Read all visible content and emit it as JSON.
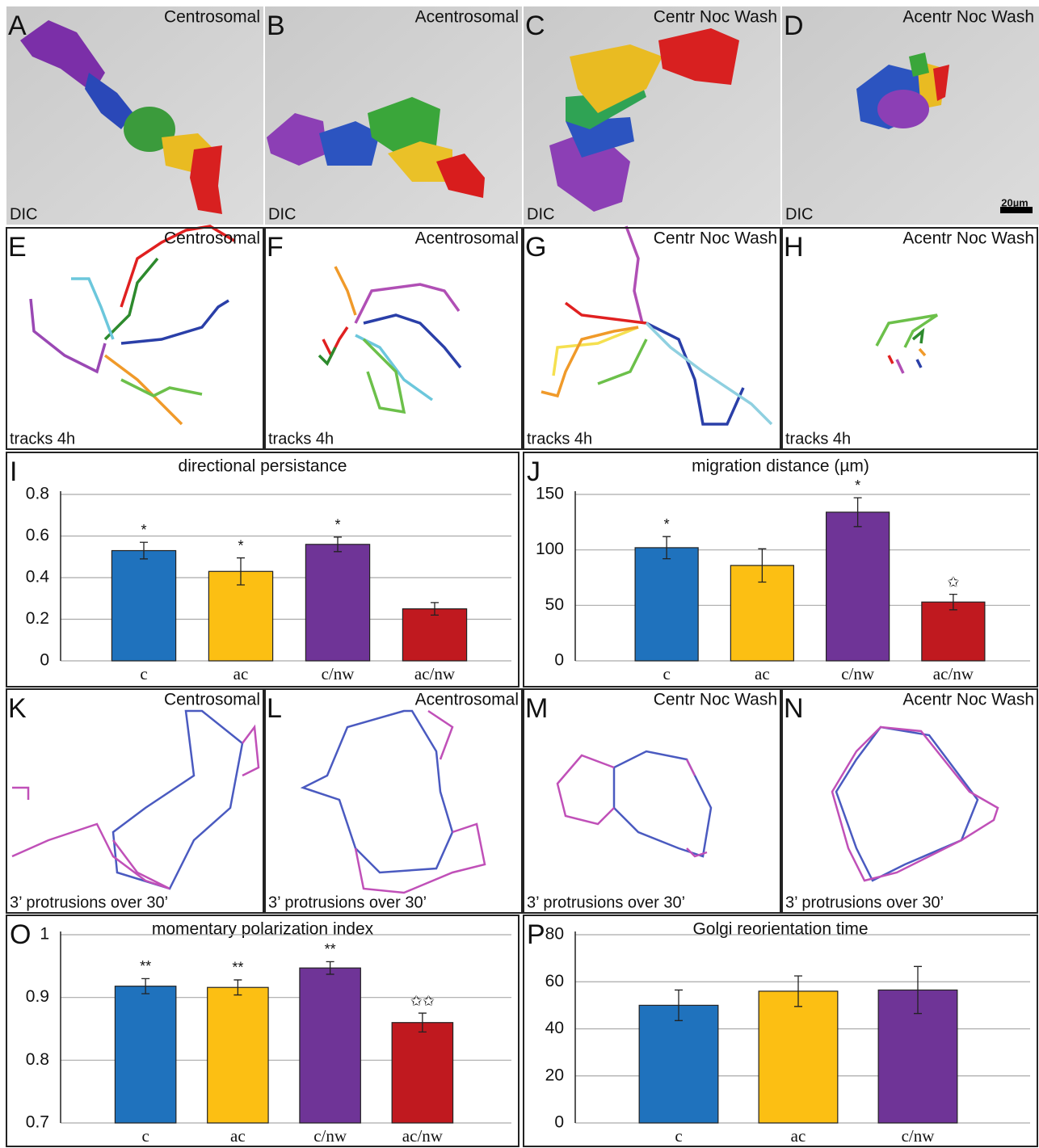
{
  "image_panels": [
    {
      "letter": "A",
      "title": "Centrosomal",
      "caption": "DIC"
    },
    {
      "letter": "B",
      "title": "Acentrosomal",
      "caption": "DIC"
    },
    {
      "letter": "C",
      "title": "Centr Noc Wash",
      "caption": "DIC"
    },
    {
      "letter": "D",
      "title": "Acentr Noc Wash",
      "caption": "DIC",
      "scale": "20µm"
    }
  ],
  "track_panels": [
    {
      "letter": "E",
      "title": "Centrosomal",
      "caption": "tracks 4h"
    },
    {
      "letter": "F",
      "title": "Acentrosomal",
      "caption": "tracks 4h"
    },
    {
      "letter": "G",
      "title": "Centr Noc Wash",
      "caption": "tracks 4h"
    },
    {
      "letter": "H",
      "title": "Acentr Noc Wash",
      "caption": "tracks 4h"
    }
  ],
  "protrusion_panels": [
    {
      "letter": "K",
      "title": "Centrosomal",
      "caption": "3’ protrusions over 30’"
    },
    {
      "letter": "L",
      "title": "Acentrosomal",
      "caption": "3’ protrusions over 30’"
    },
    {
      "letter": "M",
      "title": "Centr Noc Wash",
      "caption": "3’ protrusions over 30’"
    },
    {
      "letter": "N",
      "title": "Acentr Noc Wash",
      "caption": "3’ protrusions over 30’"
    }
  ],
  "chart_data": [
    {
      "type": "bar",
      "panel": "I",
      "title": "directional persistance",
      "categories": [
        "c",
        "ac",
        "c/nw",
        "ac/nw"
      ],
      "values": [
        0.53,
        0.43,
        0.56,
        0.25
      ],
      "errors": [
        0.04,
        0.065,
        0.035,
        0.03
      ],
      "markers": [
        "*",
        "*",
        "*",
        null
      ],
      "colors": [
        "#1f72bd",
        "#fcbf13",
        "#6f3497",
        "#c0191f"
      ],
      "ylim": [
        0,
        0.8
      ],
      "yticks": [
        0,
        0.2,
        0.4,
        0.6,
        0.8
      ],
      "grid": true
    },
    {
      "type": "bar",
      "panel": "J",
      "title": "migration distance (µm)",
      "categories": [
        "c",
        "ac",
        "c/nw",
        "ac/nw"
      ],
      "values": [
        102,
        86,
        134,
        53
      ],
      "errors": [
        10,
        15,
        13,
        7
      ],
      "markers": [
        "*",
        null,
        "*",
        "✩"
      ],
      "colors": [
        "#1f72bd",
        "#fcbf13",
        "#6f3497",
        "#c0191f"
      ],
      "ylim": [
        0,
        150
      ],
      "yticks": [
        0,
        50,
        100,
        150
      ],
      "grid": true
    },
    {
      "type": "bar",
      "panel": "O",
      "title": "momentary polarization index",
      "categories": [
        "c",
        "ac",
        "c/nw",
        "ac/nw"
      ],
      "values": [
        0.918,
        0.916,
        0.947,
        0.86
      ],
      "errors": [
        0.012,
        0.012,
        0.01,
        0.015
      ],
      "markers": [
        "**",
        "**",
        "**",
        "✩✩"
      ],
      "colors": [
        "#1f72bd",
        "#fcbf13",
        "#6f3497",
        "#c0191f"
      ],
      "ylim": [
        0.7,
        1
      ],
      "yticks": [
        0.7,
        0.8,
        0.9,
        1
      ],
      "grid": true
    },
    {
      "type": "bar",
      "panel": "P",
      "title": "Golgi reorientation time",
      "categories": [
        "c",
        "ac",
        "c/nw"
      ],
      "values": [
        50,
        56,
        56.5
      ],
      "errors": [
        6.5,
        6.5,
        10
      ],
      "colors": [
        "#1f72bd",
        "#fcbf13",
        "#6f3497"
      ],
      "ylim": [
        0,
        80
      ],
      "yticks": [
        0,
        20,
        40,
        60,
        80
      ],
      "grid": true
    }
  ]
}
